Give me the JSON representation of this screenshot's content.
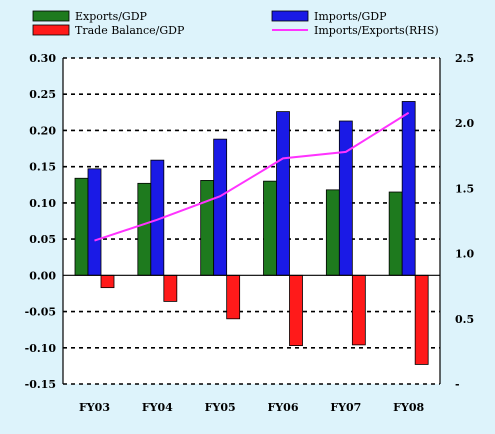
{
  "chart_data": {
    "type": "bar",
    "categories": [
      "FY03",
      "FY04",
      "FY05",
      "FY06",
      "FY07",
      "FY08"
    ],
    "series": [
      {
        "name": "Exports/GDP",
        "type": "bar",
        "axis": "left",
        "color": "#1e7a1e",
        "values": [
          0.134,
          0.127,
          0.131,
          0.13,
          0.118,
          0.115
        ]
      },
      {
        "name": "Imports/GDP",
        "type": "bar",
        "axis": "left",
        "color": "#1a1ae6",
        "values": [
          0.147,
          0.159,
          0.188,
          0.226,
          0.213,
          0.24
        ]
      },
      {
        "name": "Trade Balance/GDP",
        "type": "bar",
        "axis": "left",
        "color": "#ff1a1a",
        "values": [
          -0.017,
          -0.036,
          -0.06,
          -0.097,
          -0.096,
          -0.123
        ]
      },
      {
        "name": "Imports/Exports(RHS)",
        "type": "line",
        "axis": "right",
        "color": "#ff33ff",
        "values": [
          1.1,
          1.26,
          1.44,
          1.73,
          1.78,
          2.08
        ]
      }
    ],
    "y_left": {
      "ticks": [
        "0.30",
        "0.25",
        "0.20",
        "0.15",
        "0.10",
        "0.05",
        "0.00",
        "-0.05",
        "-0.10",
        "-0.15"
      ],
      "min": -0.15,
      "max": 0.3
    },
    "y_right": {
      "ticks": [
        "2.5",
        "2.0",
        "1.5",
        "1.0",
        "0.5",
        "-"
      ],
      "min": 0.0,
      "max": 2.5
    },
    "grid": "dashed horizontal",
    "legend": "top"
  }
}
